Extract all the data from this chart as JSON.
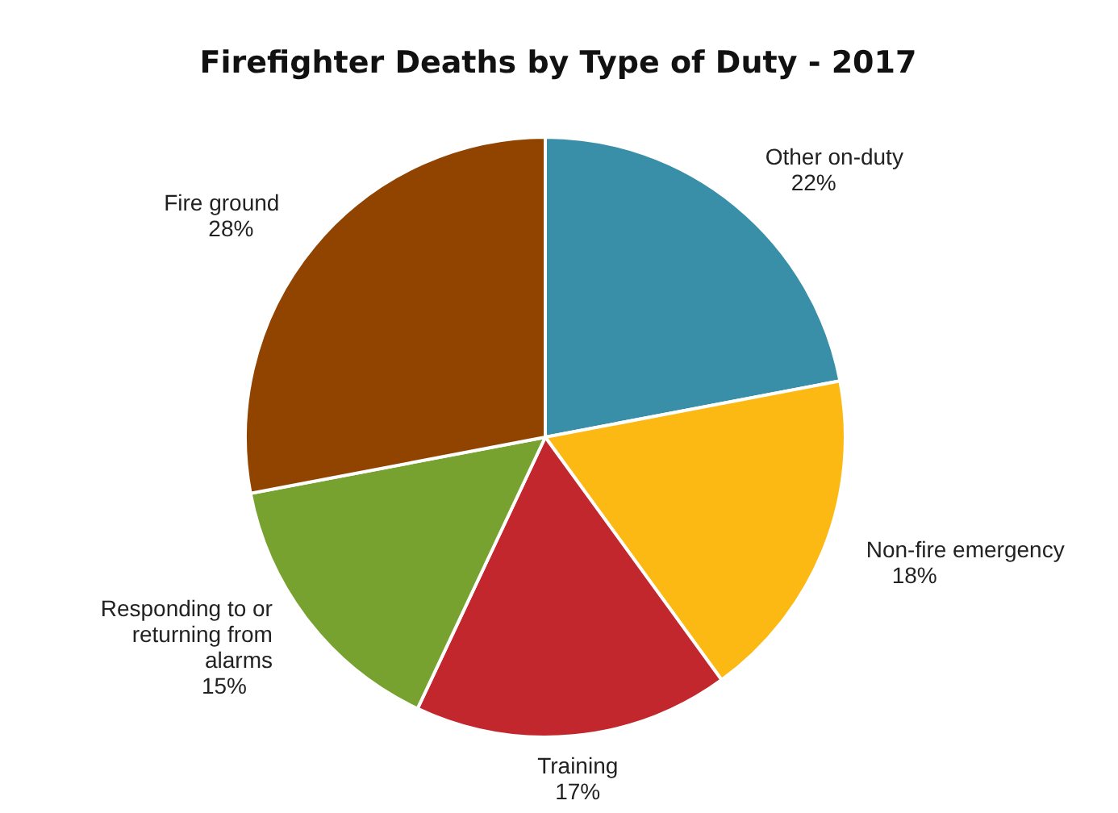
{
  "chart_data": {
    "type": "pie",
    "title": "Firefighter Deaths by Type of Duty - 2017",
    "categories": [
      "Other on-duty",
      "Non-fire emergency",
      "Training",
      "Responding to or returning from alarms",
      "Fire ground"
    ],
    "values": [
      22,
      18,
      17,
      15,
      28
    ],
    "colors": [
      "#3a8fa8",
      "#fdb913",
      "#c1272d",
      "#77a22f",
      "#914400"
    ],
    "value_labels": [
      "22%",
      "18%",
      "17%",
      "15%",
      "28%"
    ]
  }
}
